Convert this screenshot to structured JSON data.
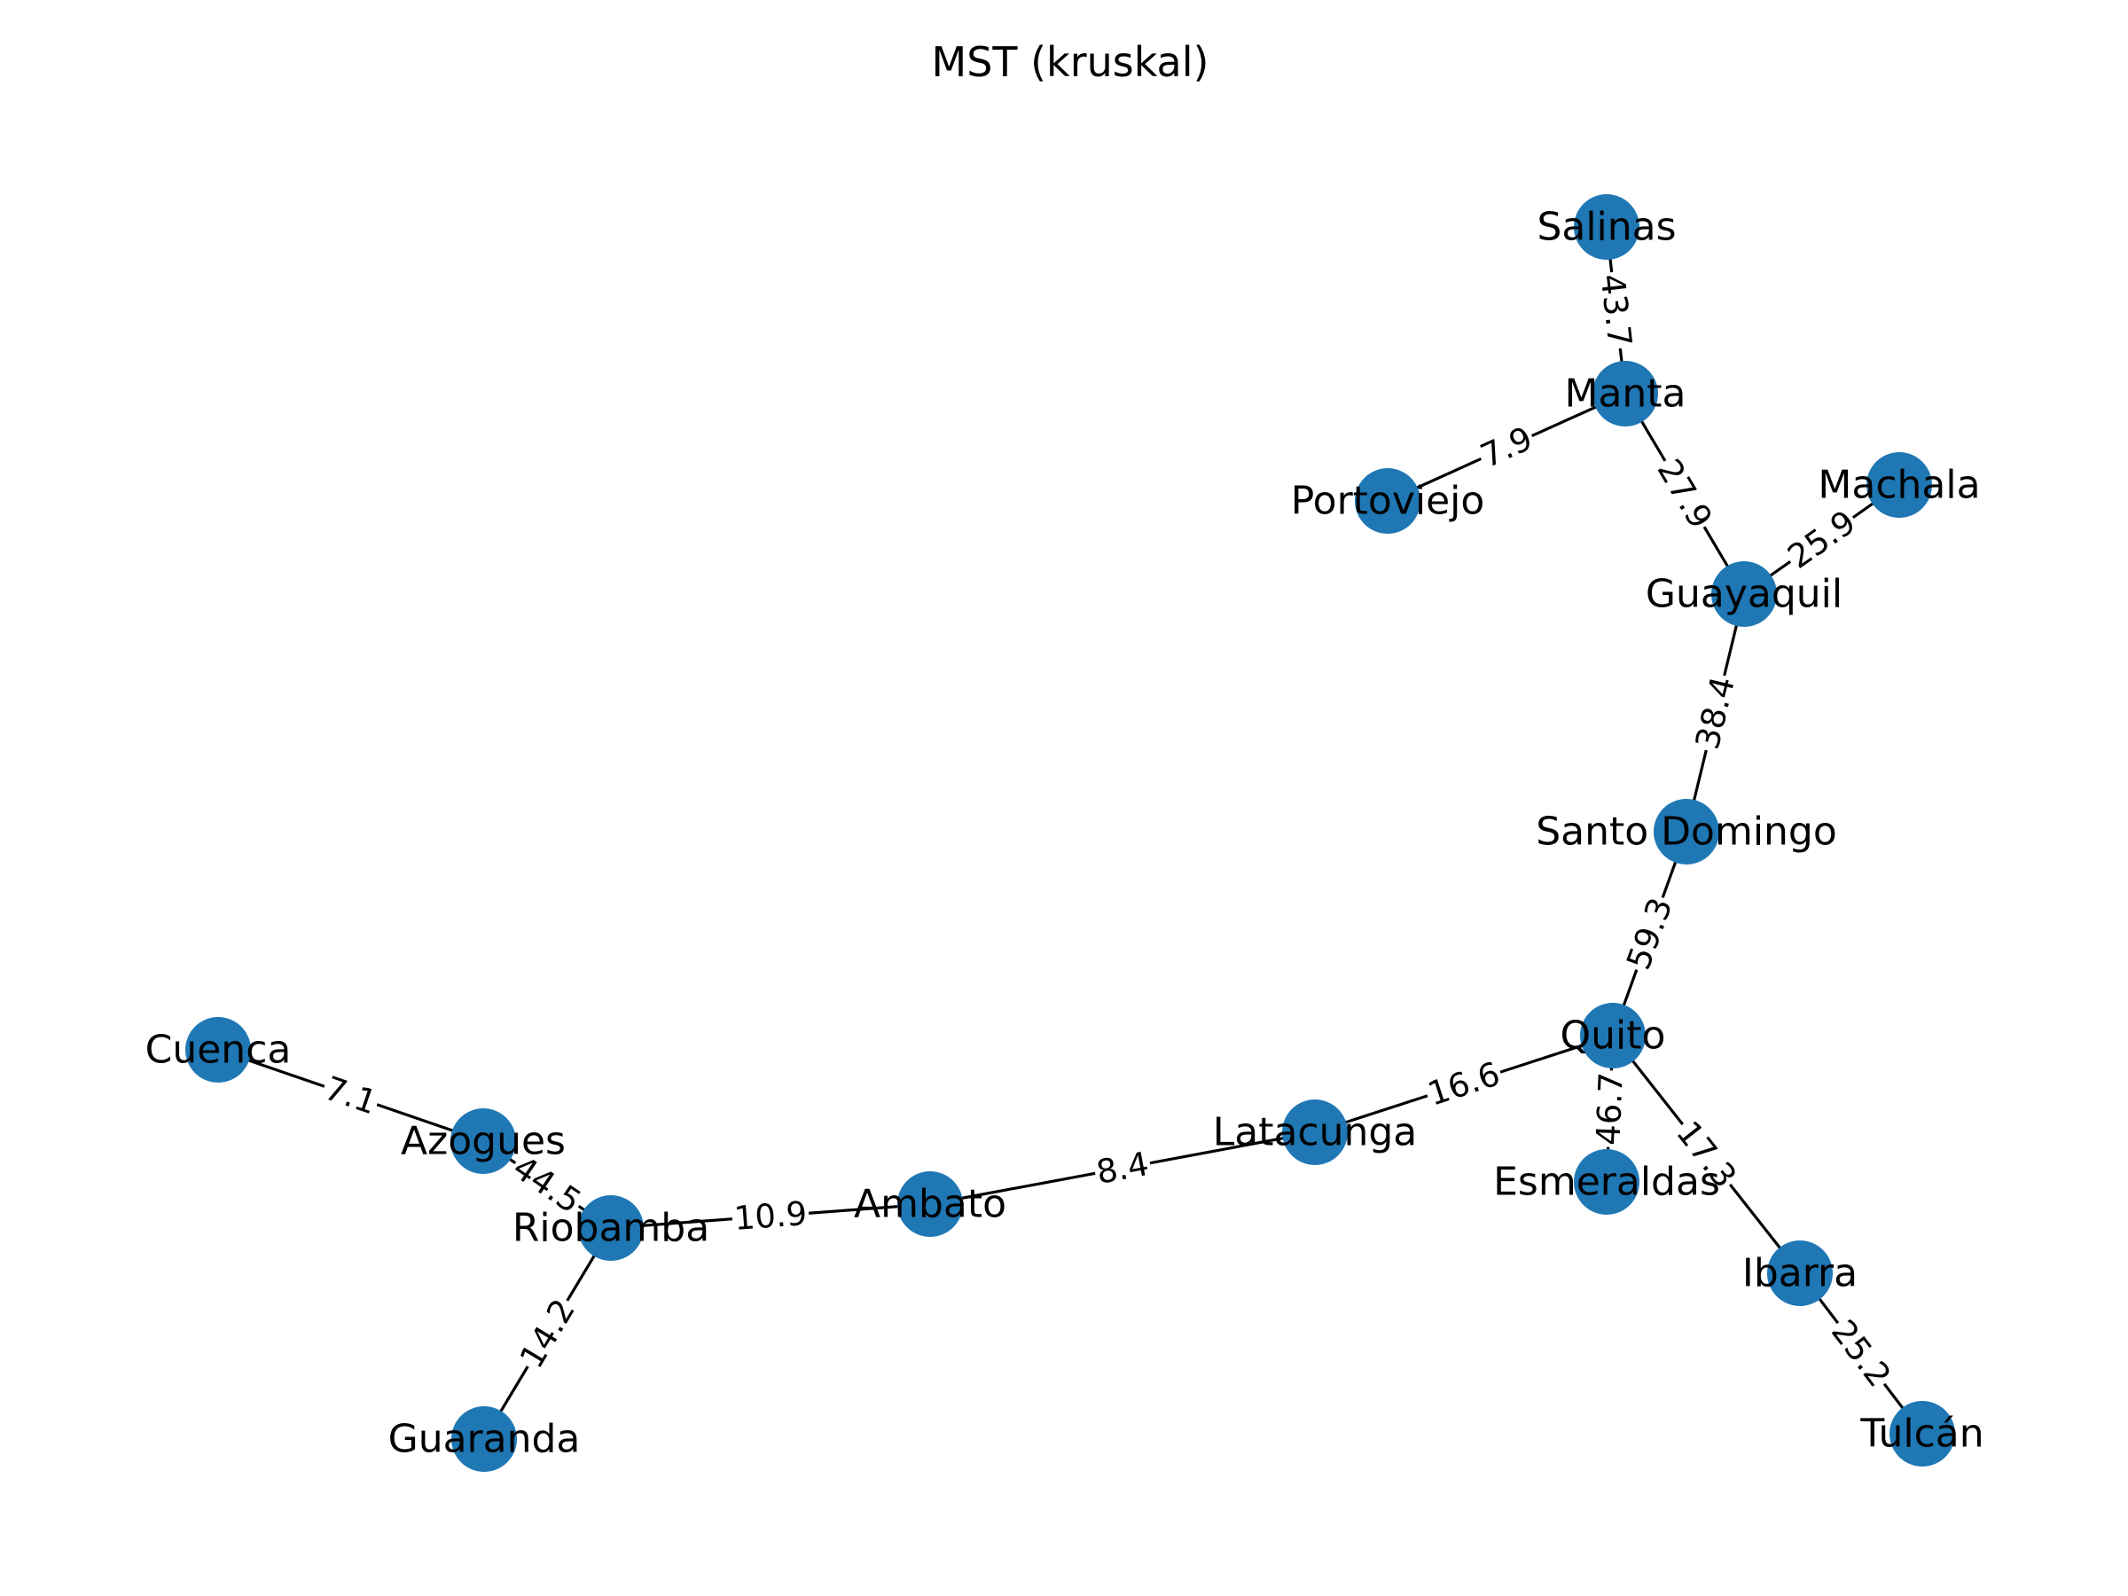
{
  "title": "MST (kruskal)",
  "colors": {
    "node": "#1f77b4",
    "edge": "#000000",
    "background": "#ffffff"
  },
  "nodes": [
    {
      "id": "salinas",
      "label": "Salinas"
    },
    {
      "id": "manta",
      "label": "Manta"
    },
    {
      "id": "portoviejo",
      "label": "Portoviejo"
    },
    {
      "id": "machala",
      "label": "Machala"
    },
    {
      "id": "guayaquil",
      "label": "Guayaquil"
    },
    {
      "id": "santo-domingo",
      "label": "Santo Domingo"
    },
    {
      "id": "quito",
      "label": "Quito"
    },
    {
      "id": "latacunga",
      "label": "Latacunga"
    },
    {
      "id": "esmeraldas",
      "label": "Esmeraldas"
    },
    {
      "id": "ibarra",
      "label": "Ibarra"
    },
    {
      "id": "tulcan",
      "label": "Tulcán"
    },
    {
      "id": "ambato",
      "label": "Ambato"
    },
    {
      "id": "riobamba",
      "label": "Riobamba"
    },
    {
      "id": "azogues",
      "label": "Azogues"
    },
    {
      "id": "cuenca",
      "label": "Cuenca"
    },
    {
      "id": "guaranda",
      "label": "Guaranda"
    }
  ],
  "edges": [
    {
      "source": "salinas",
      "target": "manta",
      "weight": "43.7"
    },
    {
      "source": "manta",
      "target": "portoviejo",
      "weight": "7.9"
    },
    {
      "source": "manta",
      "target": "guayaquil",
      "weight": "27.9"
    },
    {
      "source": "guayaquil",
      "target": "machala",
      "weight": "25.9"
    },
    {
      "source": "guayaquil",
      "target": "santo-domingo",
      "weight": "38.4"
    },
    {
      "source": "santo-domingo",
      "target": "quito",
      "weight": "59.3"
    },
    {
      "source": "quito",
      "target": "latacunga",
      "weight": "16.6"
    },
    {
      "source": "quito",
      "target": "esmeraldas",
      "weight": "46.7"
    },
    {
      "source": "quito",
      "target": "ibarra",
      "weight": "17.3"
    },
    {
      "source": "ibarra",
      "target": "tulcan",
      "weight": "25.2"
    },
    {
      "source": "latacunga",
      "target": "ambato",
      "weight": "8.4"
    },
    {
      "source": "ambato",
      "target": "riobamba",
      "weight": "10.9"
    },
    {
      "source": "riobamba",
      "target": "azogues",
      "weight": "44.5"
    },
    {
      "source": "azogues",
      "target": "cuenca",
      "weight": "7.1"
    },
    {
      "source": "riobamba",
      "target": "guaranda",
      "weight": "14.2"
    }
  ]
}
